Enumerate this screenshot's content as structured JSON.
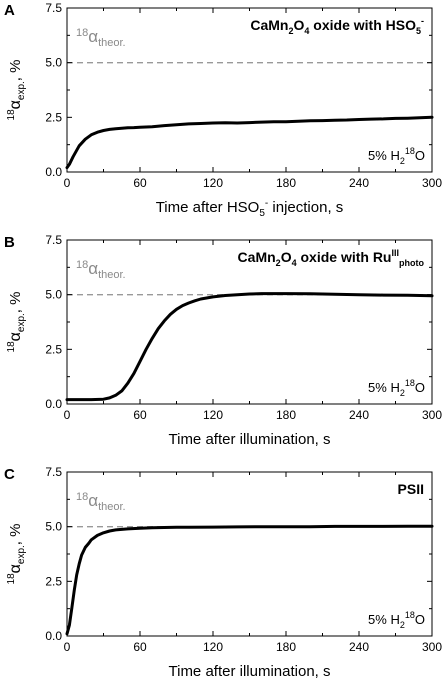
{
  "figure": {
    "background": "#ffffff"
  },
  "chart_data": [
    {
      "panel": "A",
      "type": "line",
      "title": "CaMn₂O₄ oxide with HSO₅⁻",
      "xlabel": "Time after HSO₅⁻ injection, s",
      "ylabel": "¹⁸αexp., %",
      "xlim": [
        0,
        300
      ],
      "ylim": [
        0,
        7.5
      ],
      "xticks": [
        0,
        60,
        120,
        180,
        240,
        300
      ],
      "yticks": [
        0.0,
        2.5,
        5.0,
        7.5
      ],
      "grid": false,
      "reference_line": {
        "y": 5.0,
        "label": "¹⁸αtheor.",
        "style": "dashed",
        "color": "#999999"
      },
      "annotation": "5% H₂¹⁸O",
      "series": [
        {
          "color": "#000000",
          "x": [
            0,
            2,
            5,
            10,
            15,
            20,
            25,
            30,
            35,
            40,
            45,
            50,
            55,
            60,
            70,
            80,
            90,
            100,
            110,
            120,
            130,
            140,
            150,
            160,
            170,
            180,
            190,
            200,
            210,
            220,
            230,
            240,
            250,
            260,
            270,
            280,
            290,
            300
          ],
          "y": [
            0.2,
            0.35,
            0.7,
            1.2,
            1.5,
            1.7,
            1.82,
            1.9,
            1.95,
            1.98,
            2.0,
            2.02,
            2.03,
            2.05,
            2.07,
            2.12,
            2.16,
            2.2,
            2.22,
            2.24,
            2.25,
            2.24,
            2.26,
            2.28,
            2.3,
            2.3,
            2.32,
            2.34,
            2.35,
            2.37,
            2.38,
            2.4,
            2.42,
            2.43,
            2.45,
            2.46,
            2.48,
            2.5
          ]
        }
      ]
    },
    {
      "panel": "B",
      "type": "line",
      "title": "CaMn₂O₄ oxide with RuIIIphoto",
      "xlabel": "Time after illumination, s",
      "ylabel": "¹⁸αexp., %",
      "xlim": [
        0,
        300
      ],
      "ylim": [
        0,
        7.5
      ],
      "xticks": [
        0,
        60,
        120,
        180,
        240,
        300
      ],
      "yticks": [
        0.0,
        2.5,
        5.0,
        7.5
      ],
      "grid": false,
      "reference_line": {
        "y": 5.0,
        "label": "¹⁸αtheor.",
        "style": "dashed",
        "color": "#999999"
      },
      "annotation": "5% H₂¹⁸O",
      "series": [
        {
          "color": "#000000",
          "x": [
            0,
            10,
            20,
            30,
            35,
            40,
            45,
            50,
            55,
            60,
            65,
            70,
            75,
            80,
            85,
            90,
            95,
            100,
            105,
            110,
            120,
            130,
            140,
            150,
            160,
            170,
            180,
            200,
            220,
            240,
            260,
            280,
            300
          ],
          "y": [
            0.2,
            0.2,
            0.2,
            0.22,
            0.28,
            0.4,
            0.6,
            0.95,
            1.4,
            1.95,
            2.5,
            3.0,
            3.45,
            3.8,
            4.1,
            4.33,
            4.5,
            4.62,
            4.72,
            4.8,
            4.9,
            4.96,
            5.0,
            5.03,
            5.05,
            5.05,
            5.05,
            5.04,
            5.02,
            5.0,
            4.98,
            4.97,
            4.95
          ]
        }
      ]
    },
    {
      "panel": "C",
      "type": "line",
      "title": "PSII",
      "xlabel": "Time after illumination, s",
      "ylabel": "¹⁸αexp., %",
      "xlim": [
        0,
        300
      ],
      "ylim": [
        0,
        7.5
      ],
      "xticks": [
        0,
        60,
        120,
        180,
        240,
        300
      ],
      "yticks": [
        0.0,
        2.5,
        5.0,
        7.5
      ],
      "grid": false,
      "reference_line": {
        "y": 5.0,
        "label": "¹⁸αtheor.",
        "style": "dashed",
        "color": "#999999"
      },
      "annotation": "5% H₂¹⁸O",
      "series": [
        {
          "color": "#000000",
          "x": [
            0,
            2,
            4,
            6,
            8,
            10,
            12,
            15,
            18,
            20,
            25,
            30,
            35,
            40,
            50,
            60,
            70,
            80,
            90,
            100,
            120,
            140,
            160,
            180,
            200,
            220,
            240,
            260,
            280,
            300
          ],
          "y": [
            0.1,
            0.5,
            1.3,
            2.1,
            2.8,
            3.3,
            3.7,
            4.05,
            4.25,
            4.4,
            4.6,
            4.72,
            4.8,
            4.85,
            4.9,
            4.93,
            4.95,
            4.96,
            4.97,
            4.97,
            4.98,
            4.99,
            5.0,
            5.0,
            5.0,
            5.01,
            5.01,
            5.01,
            5.02,
            5.02
          ]
        }
      ]
    }
  ]
}
